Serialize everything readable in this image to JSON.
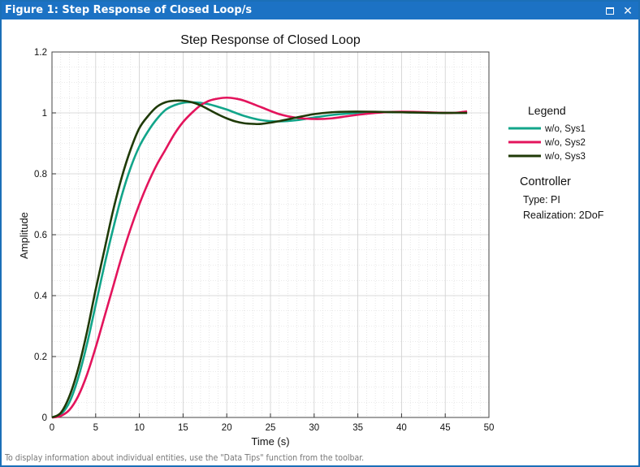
{
  "window": {
    "title": "Figure 1: Step Response of Closed Loop/s",
    "maximize_icon": "maximize-icon",
    "close_icon": "close-icon"
  },
  "status_text": "To display information about individual entities, use the \"Data Tips\" function from the toolbar.",
  "legend": {
    "title": "Legend",
    "entries": [
      "w/o, Sys1",
      "w/o, Sys2",
      "w/o, Sys3"
    ]
  },
  "controller": {
    "heading": "Controller",
    "type_line": "Type: PI",
    "realization_line": "Realization: 2DoF"
  },
  "chart_data": {
    "type": "line",
    "title": "Step Response of Closed Loop",
    "xlabel": "Time (s)",
    "ylabel": "Amplitude",
    "xlim": [
      0,
      50
    ],
    "ylim": [
      0,
      1.2
    ],
    "xticks": [
      "0",
      "5",
      "10",
      "15",
      "20",
      "25",
      "30",
      "35",
      "40",
      "45",
      "50"
    ],
    "yticks": [
      "0",
      "0.2",
      "0.4",
      "0.6",
      "0.8",
      "1",
      "1.2"
    ],
    "grid": true,
    "minor_grid": true,
    "legend_position": "right outside",
    "series": [
      {
        "name": "w/o, Sys1",
        "color": "#12a58a",
        "x": [
          0,
          1,
          2,
          3,
          4,
          5,
          6,
          7,
          8,
          9,
          10,
          11,
          12,
          13,
          14,
          15,
          16,
          17,
          18,
          19,
          20,
          22,
          24,
          26,
          28,
          30,
          32,
          34,
          36,
          38,
          40,
          42,
          44,
          46,
          47.5
        ],
        "y": [
          0,
          0.01,
          0.05,
          0.13,
          0.24,
          0.37,
          0.5,
          0.62,
          0.73,
          0.82,
          0.89,
          0.94,
          0.98,
          1.01,
          1.025,
          1.033,
          1.035,
          1.033,
          1.028,
          1.02,
          1.011,
          0.99,
          0.976,
          0.972,
          0.976,
          0.985,
          0.993,
          0.998,
          1.001,
          1.002,
          1.002,
          1.001,
          1.0,
          1.0,
          1.0
        ]
      },
      {
        "name": "w/o, Sys2",
        "color": "#e3145c",
        "x": [
          0,
          1,
          2,
          3,
          4,
          5,
          6,
          7,
          8,
          9,
          10,
          11,
          12,
          13,
          14,
          15,
          16,
          17,
          18,
          19,
          20,
          21,
          22,
          24,
          26,
          28,
          30,
          32,
          34,
          36,
          38,
          40,
          42,
          44,
          46,
          47.5
        ],
        "y": [
          0,
          0.005,
          0.025,
          0.07,
          0.14,
          0.23,
          0.33,
          0.43,
          0.53,
          0.62,
          0.7,
          0.77,
          0.83,
          0.88,
          0.93,
          0.97,
          1.0,
          1.025,
          1.04,
          1.047,
          1.05,
          1.047,
          1.04,
          1.018,
          0.996,
          0.984,
          0.98,
          0.982,
          0.99,
          0.997,
          1.002,
          1.004,
          1.003,
          1.001,
          1.0,
          1.005
        ]
      },
      {
        "name": "w/o, Sys3",
        "color": "#1f3a07",
        "x": [
          0,
          1,
          2,
          3,
          4,
          5,
          6,
          7,
          8,
          9,
          10,
          11,
          12,
          13,
          14,
          15,
          16,
          17,
          18,
          19,
          20,
          21,
          22,
          23,
          24,
          26,
          28,
          30,
          32,
          34,
          36,
          38,
          40,
          42,
          44,
          46,
          47.5
        ],
        "y": [
          0,
          0.015,
          0.07,
          0.16,
          0.28,
          0.42,
          0.55,
          0.68,
          0.79,
          0.88,
          0.95,
          0.99,
          1.02,
          1.035,
          1.04,
          1.04,
          1.035,
          1.025,
          1.01,
          0.995,
          0.982,
          0.972,
          0.966,
          0.964,
          0.964,
          0.973,
          0.985,
          0.996,
          1.002,
          1.004,
          1.004,
          1.003,
          1.002,
          1.001,
          1.0,
          1.0,
          1.0
        ]
      }
    ]
  }
}
